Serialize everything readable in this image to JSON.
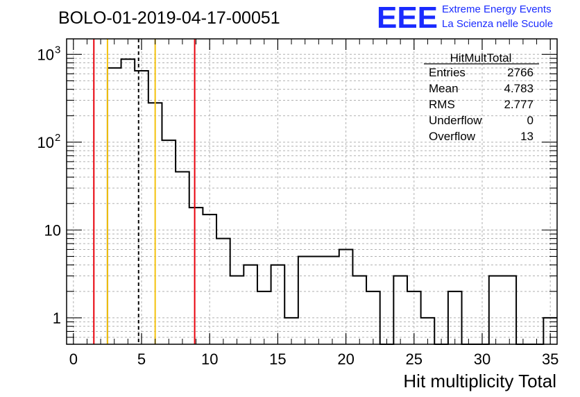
{
  "chart_data": {
    "type": "histogram",
    "title": "BOLO-01-2019-04-17-00051",
    "xlabel": "Hit multiplicity Total",
    "ylabel": "",
    "xlim": [
      -0.5,
      35.5
    ],
    "ylim": [
      0.5,
      1500
    ],
    "yscale": "log",
    "grid": true,
    "x_ticks": [
      0,
      5,
      10,
      15,
      20,
      25,
      30,
      35
    ],
    "y_ticks": [
      {
        "value": 1,
        "label": "1"
      },
      {
        "value": 10,
        "label": "10"
      },
      {
        "value": 100,
        "label": "10",
        "exp": "2"
      },
      {
        "value": 1000,
        "label": "10",
        "exp": "3"
      }
    ],
    "bins": {
      "edges": [
        2.5,
        3.5,
        4.5,
        5.5,
        6.5,
        7.5,
        8.5,
        9.5,
        10.5,
        11.5,
        12.5,
        13.5,
        14.5,
        15.5,
        16.5,
        17.5,
        18.5,
        19.5,
        20.5,
        21.5,
        22.5,
        23.5,
        24.5,
        25.5,
        26.5,
        27.5,
        28.5,
        29.5,
        30.5,
        31.5,
        32.5,
        33.5,
        34.5,
        35.5
      ],
      "values": [
        700,
        880,
        650,
        280,
        105,
        46,
        18,
        15,
        8,
        3,
        4,
        2,
        4,
        1,
        5,
        5,
        5,
        6,
        3,
        2,
        0,
        3,
        2,
        1,
        0,
        2,
        0,
        0,
        3,
        3,
        0,
        0,
        1
      ]
    },
    "vertical_lines": [
      {
        "x": 1.5,
        "color": "#e8000b",
        "style": "solid"
      },
      {
        "x": 2.5,
        "color": "#f4c20d",
        "style": "solid"
      },
      {
        "x": 4.783,
        "color": "#000000",
        "style": "dashed"
      },
      {
        "x": 6.0,
        "color": "#f4c20d",
        "style": "solid"
      },
      {
        "x": 8.9,
        "color": "#e8000b",
        "style": "solid"
      }
    ],
    "stats_box": {
      "title": "HitMultTotal",
      "rows": [
        {
          "label": "Entries",
          "value": "2766"
        },
        {
          "label": "Mean",
          "value": "4.783"
        },
        {
          "label": "RMS",
          "value": "2.777"
        },
        {
          "label": "Underflow",
          "value": "0"
        },
        {
          "label": "Overflow",
          "value": "13"
        }
      ]
    }
  },
  "logo": {
    "big": "EEE",
    "line1": "Extreme Energy Events",
    "line2": "La Scienza nelle Scuole",
    "color": "#1a2bff"
  }
}
